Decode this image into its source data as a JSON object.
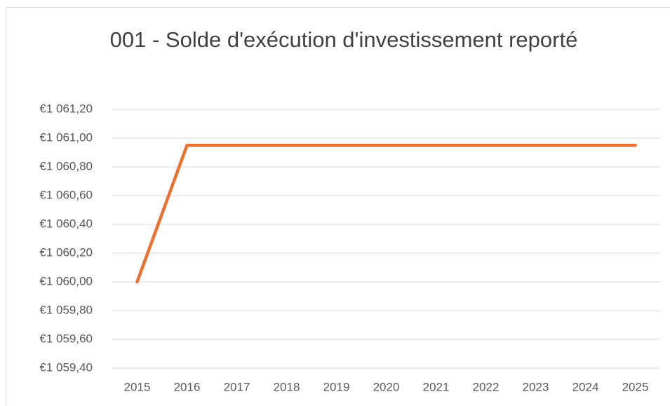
{
  "chart_data": {
    "type": "line",
    "title": "001 - Solde d'exécution d'investissement reporté",
    "categories": [
      "2015",
      "2016",
      "2017",
      "2018",
      "2019",
      "2020",
      "2021",
      "2022",
      "2023",
      "2024",
      "2025"
    ],
    "series": [
      {
        "name": "001 - Solde d'exécution d'investissement reporté",
        "color": "#e97132",
        "values": [
          1060.0,
          1060.95,
          1060.95,
          1060.95,
          1060.95,
          1060.95,
          1060.95,
          1060.95,
          1060.95,
          1060.95,
          1060.95
        ]
      }
    ],
    "ylim": [
      1059.4,
      1061.2
    ],
    "yticks": [
      {
        "value": 1059.4,
        "label": "€1 059,40"
      },
      {
        "value": 1059.6,
        "label": "€1 059,60"
      },
      {
        "value": 1059.8,
        "label": "€1 059,80"
      },
      {
        "value": 1060.0,
        "label": "€1 060,00"
      },
      {
        "value": 1060.2,
        "label": "€1 060,20"
      },
      {
        "value": 1060.4,
        "label": "€1 060,40"
      },
      {
        "value": 1060.6,
        "label": "€1 060,60"
      },
      {
        "value": 1060.8,
        "label": "€1 060,80"
      },
      {
        "value": 1061.0,
        "label": "€1 061,00"
      },
      {
        "value": 1061.2,
        "label": "€1 061,20"
      }
    ],
    "grid": true
  }
}
